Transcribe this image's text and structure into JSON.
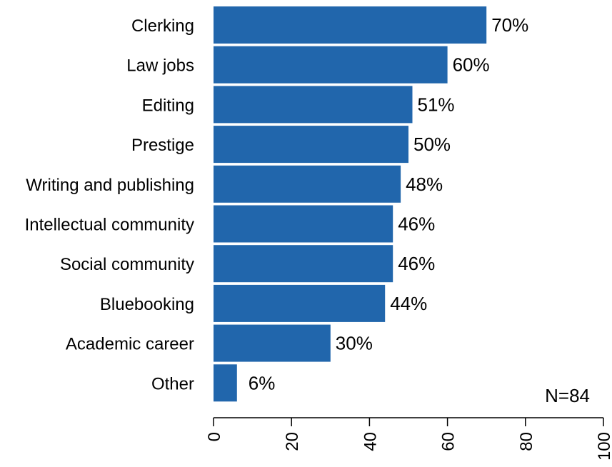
{
  "chart_data": {
    "type": "bar",
    "orientation": "horizontal",
    "categories": [
      "Clerking",
      "Law jobs",
      "Editing",
      "Prestige",
      "Writing and publishing",
      "Intellectual community",
      "Social community",
      "Bluebooking",
      "Academic career",
      "Other"
    ],
    "values": [
      70,
      60,
      51,
      50,
      48,
      46,
      46,
      44,
      30,
      6
    ],
    "value_labels": [
      "70%",
      "60%",
      "51%",
      "50%",
      "48%",
      "46%",
      "46%",
      "44%",
      "30%",
      "6%"
    ],
    "title": "",
    "xlabel": "",
    "ylabel": "",
    "xlim": [
      0,
      100
    ],
    "x_ticks": [
      0,
      20,
      40,
      60,
      80,
      100
    ],
    "x_tick_labels": [
      "0",
      "20",
      "40",
      "60",
      "80",
      "100"
    ],
    "tick_label_rotation": "vertical",
    "annotation": "N=84",
    "annotation_position": "bottom-right",
    "grid": false,
    "legend": false,
    "bar_color": "#2166AC"
  }
}
